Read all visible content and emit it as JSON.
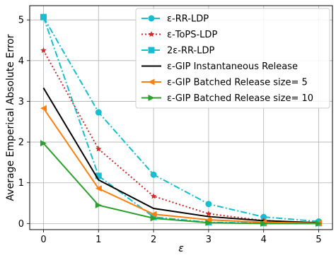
{
  "chart_data": {
    "type": "line",
    "title": "",
    "xlabel": "ε",
    "ylabel": "Average Emperical Absolute Error",
    "xlim": [
      -0.25,
      5.25
    ],
    "ylim": [
      -0.15,
      5.35
    ],
    "x_ticks": [
      0,
      1,
      2,
      3,
      4,
      5
    ],
    "y_ticks": [
      0,
      1,
      2,
      3,
      4,
      5
    ],
    "grid": true,
    "legend_position": "top-right",
    "x": [
      0,
      1,
      2,
      3,
      4,
      5
    ],
    "series": [
      {
        "name": "ε-RR-LDP",
        "values": [
          5.07,
          2.73,
          1.2,
          0.48,
          0.16,
          0.05
        ],
        "color": "#17becf",
        "dash": "9,3,2,3",
        "marker": "circle"
      },
      {
        "name": "ε-ToPS-LDP",
        "values": [
          4.25,
          1.83,
          0.67,
          0.24,
          0.07,
          0.02
        ],
        "color": "#d62728",
        "dash": "2,3",
        "marker": "star"
      },
      {
        "name": "2ε-RR-LDP",
        "values": [
          5.07,
          1.17,
          0.16,
          0.03,
          0.01,
          0.01
        ],
        "color": "#17becf",
        "dash": "9,3,2,3",
        "marker": "square"
      },
      {
        "name": "ε-GIP Instantaneous Release",
        "values": [
          3.33,
          1.07,
          0.37,
          0.17,
          0.07,
          0.02
        ],
        "color": "#000000",
        "dash": "",
        "marker": "none"
      },
      {
        "name": "ε-GIP Batched Release size= 5",
        "values": [
          2.83,
          0.86,
          0.23,
          0.09,
          0.03,
          0.01
        ],
        "color": "#ff7f0e",
        "dash": "",
        "marker": "triangle-left"
      },
      {
        "name": "ε-GIP Batched Release size= 10",
        "values": [
          1.97,
          0.45,
          0.13,
          0.02,
          0.0,
          0.0
        ],
        "color": "#2ca02c",
        "dash": "",
        "marker": "triangle-right"
      }
    ]
  }
}
